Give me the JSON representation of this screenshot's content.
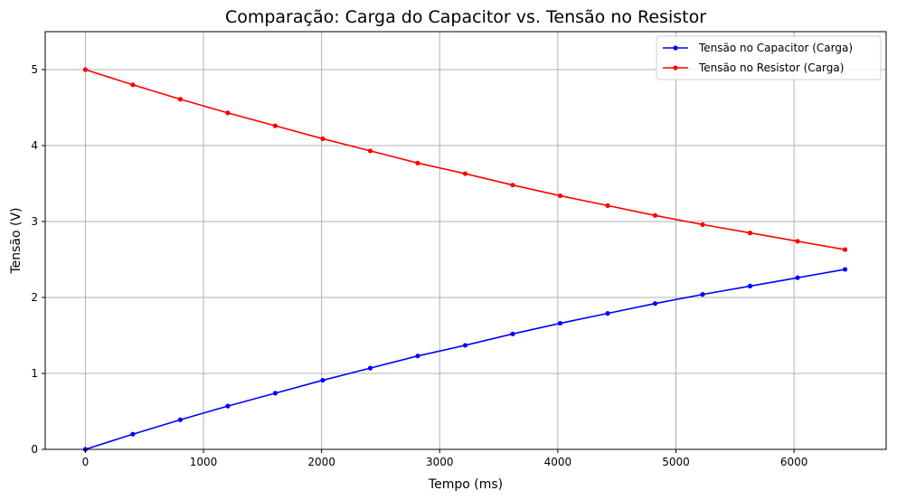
{
  "chart_data": {
    "type": "line",
    "title": "Comparação: Carga do Capacitor vs. Tensão no Resistor",
    "xlabel": "Tempo (ms)",
    "ylabel": "Tensão (V)",
    "xlim": [
      -340,
      6780
    ],
    "ylim": [
      0,
      5.5
    ],
    "xticks": [
      0,
      1000,
      2000,
      3000,
      4000,
      5000,
      6000
    ],
    "yticks": [
      0,
      1,
      2,
      3,
      4,
      5
    ],
    "grid": true,
    "legend_position": "top-right",
    "x": [
      0,
      402,
      804,
      1206,
      1608,
      2010,
      2412,
      2814,
      3216,
      3618,
      4020,
      4422,
      4824,
      5226,
      5628,
      6030,
      6432
    ],
    "series": [
      {
        "name": "Tensão no Capacitor (Carga)",
        "color": "#0000ff",
        "marker": "circle",
        "values": [
          0.0,
          0.2,
          0.39,
          0.57,
          0.74,
          0.91,
          1.07,
          1.23,
          1.37,
          1.52,
          1.66,
          1.79,
          1.92,
          2.04,
          2.15,
          2.26,
          2.37
        ]
      },
      {
        "name": "Tensão no Resistor (Carga)",
        "color": "#ff0000",
        "marker": "circle",
        "values": [
          5.0,
          4.8,
          4.61,
          4.43,
          4.26,
          4.09,
          3.93,
          3.77,
          3.63,
          3.48,
          3.34,
          3.21,
          3.08,
          2.96,
          2.85,
          2.74,
          2.63
        ]
      }
    ]
  }
}
